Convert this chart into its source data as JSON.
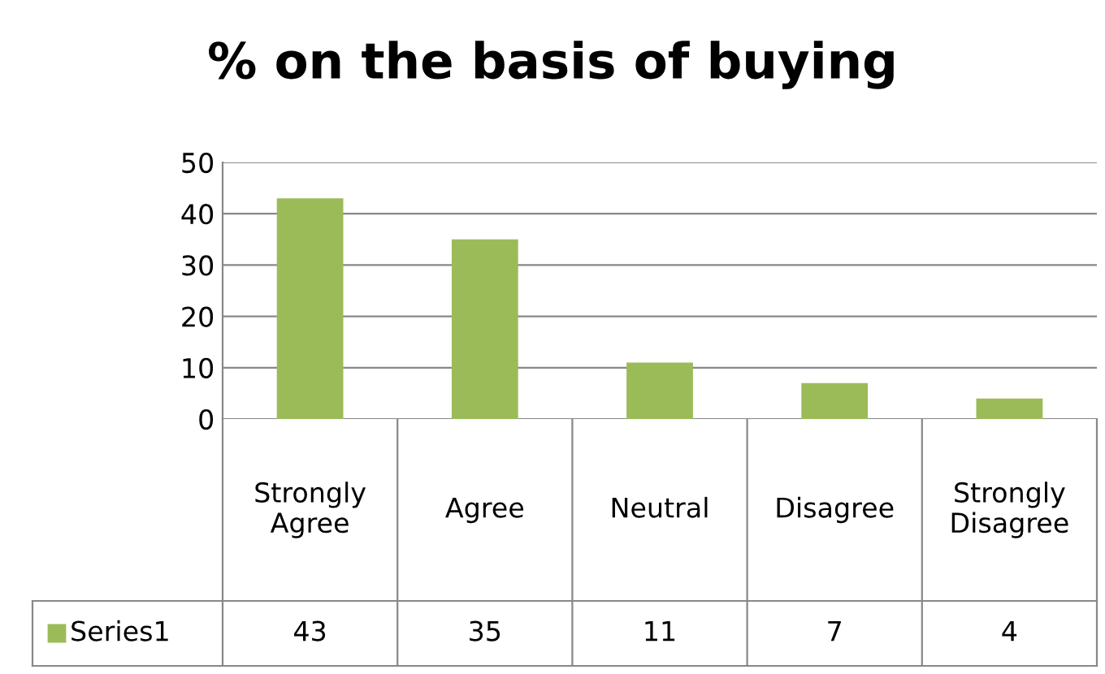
{
  "chart_data": {
    "type": "bar",
    "title": "% on the basis of buying",
    "categories": [
      "Strongly Agree",
      "Agree",
      "Neutral",
      "Disagree",
      "Strongly Disagree"
    ],
    "series": [
      {
        "name": "Series1",
        "color": "#9bbb59",
        "values": [
          43,
          35,
          11,
          7,
          4
        ]
      }
    ],
    "ylim": [
      0,
      50
    ],
    "yticks": [
      0,
      10,
      20,
      30,
      40,
      50
    ],
    "grid": "y",
    "data_labels": true
  }
}
